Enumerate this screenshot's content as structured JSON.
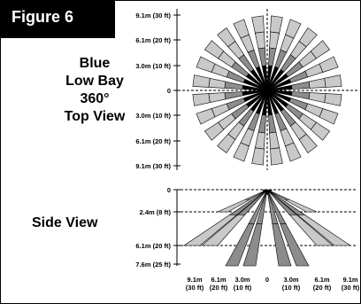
{
  "figure_label": "Figure 6",
  "title_lines": [
    "Blue",
    "Low Bay",
    "360°",
    "Top View"
  ],
  "side_title": "Side View",
  "top_view": {
    "y_labels": [
      "9.1m (30 ft)",
      "6.1m (20 ft)",
      "3.0m (10 ft)",
      "0",
      "3.0m (10 ft)",
      "6.1m (20 ft)",
      "9.1m (30 ft)"
    ],
    "beam_count": 24
  },
  "side_view": {
    "y_labels": [
      "0",
      "2.4m (8 ft)",
      "6.1m (20 ft)",
      "7.6m (25 ft)"
    ],
    "x_labels": [
      {
        "top": "9.1m",
        "bottom": "(30 ft)"
      },
      {
        "top": "6.1m",
        "bottom": "(20 ft)"
      },
      {
        "top": "3.0m",
        "bottom": "(10 ft)"
      },
      {
        "top": "0",
        "bottom": ""
      },
      {
        "top": "3.0m",
        "bottom": "(10 ft)"
      },
      {
        "top": "6.1m",
        "bottom": "(20 ft)"
      },
      {
        "top": "9.1m",
        "bottom": "(30 ft)"
      }
    ]
  },
  "colors": {
    "dark_band": "#8c8c8c",
    "light_band": "#c9c9c9"
  }
}
